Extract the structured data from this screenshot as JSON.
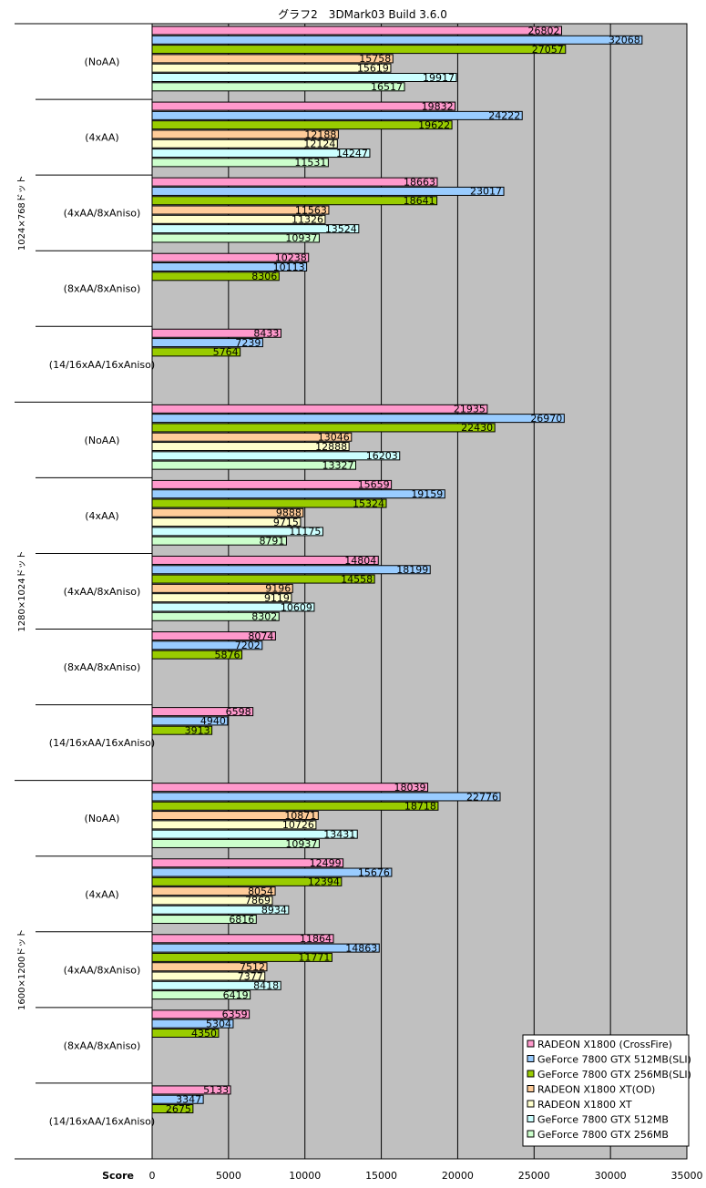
{
  "chart_data": {
    "type": "bar",
    "orientation": "horizontal",
    "title": "グラフ2　3DMark03 Build 3.6.0",
    "xlabel": "Score",
    "xlim": [
      0,
      35000
    ],
    "xticks": [
      0,
      5000,
      10000,
      15000,
      20000,
      25000,
      30000,
      35000
    ],
    "grid": true,
    "legend_position": "bottom-right",
    "colors": {
      "plot_bg": "#c0c0c0",
      "frame": "#000000",
      "grid": "#000000"
    },
    "series": [
      {
        "name": "RADEON X1800 (CrossFire)",
        "color": "#ff99cc"
      },
      {
        "name": "GeForce 7800 GTX 512MB(SLI)",
        "color": "#99ccff"
      },
      {
        "name": "GeForce 7800 GTX 256MB(SLI)",
        "color": "#99cc00"
      },
      {
        "name": "RADEON X1800 XT(OD)",
        "color": "#ffcc99"
      },
      {
        "name": "RADEON X1800 XT",
        "color": "#ffffcc"
      },
      {
        "name": "GeForce 7800 GTX 512MB",
        "color": "#ccffff"
      },
      {
        "name": "GeForce 7800 GTX 256MB",
        "color": "#ccffcc"
      }
    ],
    "groups": [
      {
        "resolution": "1024×768ドット",
        "categories": [
          {
            "label": "(NoAA)",
            "values": [
              26802,
              32068,
              27057,
              15758,
              15619,
              19917,
              16517
            ]
          },
          {
            "label": "(4xAA)",
            "values": [
              19832,
              24222,
              19622,
              12188,
              12124,
              14247,
              11531
            ]
          },
          {
            "label": "(4xAA/8xAniso)",
            "values": [
              18663,
              23017,
              18641,
              11563,
              11326,
              13524,
              10937
            ]
          },
          {
            "label": "(8xAA/8xAniso)",
            "values": [
              10238,
              10113,
              8306,
              null,
              null,
              null,
              null
            ]
          },
          {
            "label": "(14/16xAA/16xAniso)",
            "values": [
              8433,
              7239,
              5764,
              null,
              null,
              null,
              null
            ]
          }
        ]
      },
      {
        "resolution": "1280×1024ドット",
        "categories": [
          {
            "label": "(NoAA)",
            "values": [
              21935,
              26970,
              22430,
              13046,
              12888,
              16203,
              13327
            ]
          },
          {
            "label": "(4xAA)",
            "values": [
              15659,
              19159,
              15324,
              9888,
              9715,
              11175,
              8791
            ]
          },
          {
            "label": "(4xAA/8xAniso)",
            "values": [
              14804,
              18199,
              14558,
              9196,
              9119,
              10609,
              8302
            ]
          },
          {
            "label": "(8xAA/8xAniso)",
            "values": [
              8074,
              7202,
              5876,
              null,
              null,
              null,
              null
            ]
          },
          {
            "label": "(14/16xAA/16xAniso)",
            "values": [
              6598,
              4940,
              3913,
              null,
              null,
              null,
              null
            ]
          }
        ]
      },
      {
        "resolution": "1600×1200ドット",
        "categories": [
          {
            "label": "(NoAA)",
            "values": [
              18039,
              22776,
              18718,
              10871,
              10726,
              13431,
              10937
            ]
          },
          {
            "label": "(4xAA)",
            "values": [
              12499,
              15676,
              12394,
              8054,
              7869,
              8934,
              6816
            ]
          },
          {
            "label": "(4xAA/8xAniso)",
            "values": [
              11864,
              14863,
              11771,
              7512,
              7377,
              8418,
              6419
            ]
          },
          {
            "label": "(8xAA/8xAniso)",
            "values": [
              6359,
              5304,
              4350,
              null,
              null,
              null,
              null
            ]
          },
          {
            "label": "(14/16xAA/16xAniso)",
            "values": [
              5133,
              3347,
              2675,
              null,
              null,
              null,
              null
            ]
          }
        ]
      }
    ]
  }
}
